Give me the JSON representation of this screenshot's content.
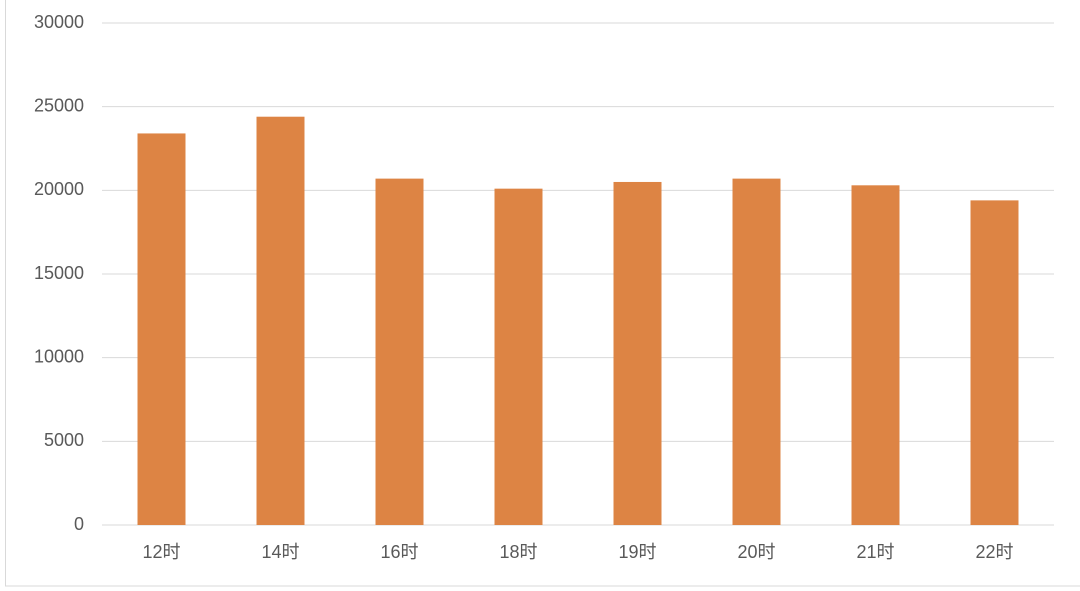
{
  "chart_data": {
    "type": "bar",
    "categories": [
      "12时",
      "14时",
      "16时",
      "18时",
      "19时",
      "20时",
      "21时",
      "22时"
    ],
    "values": [
      23400,
      24400,
      20700,
      20100,
      20500,
      20700,
      20300,
      19400
    ],
    "color": "#dd8444",
    "ylim": [
      0,
      30000
    ],
    "yticks": [
      0,
      5000,
      10000,
      15000,
      20000,
      25000,
      30000
    ],
    "grid": true
  }
}
